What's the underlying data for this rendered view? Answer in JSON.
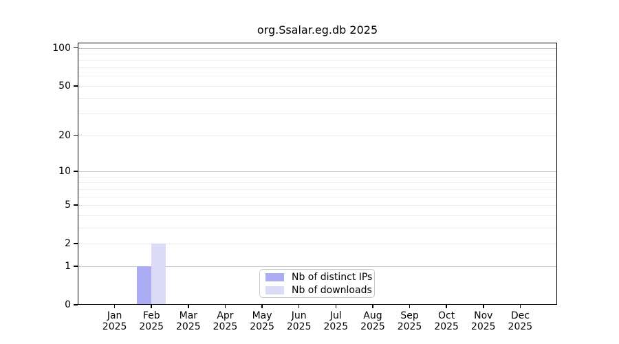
{
  "chart_data": {
    "type": "bar",
    "title": "org.Ssalar.eg.db 2025",
    "categories": [
      "Jan",
      "Feb",
      "Mar",
      "Apr",
      "May",
      "Jun",
      "Jul",
      "Aug",
      "Sep",
      "Oct",
      "Nov",
      "Dec"
    ],
    "x_year": "2025",
    "series": [
      {
        "name": "Nb of distinct IPs",
        "color": "#acacf4",
        "values": [
          0,
          1,
          0,
          0,
          0,
          0,
          0,
          0,
          0,
          0,
          0,
          0
        ]
      },
      {
        "name": "Nb of downloads",
        "color": "#dcdcf8",
        "values": [
          0,
          2,
          0,
          0,
          0,
          0,
          0,
          0,
          0,
          0,
          0,
          0
        ]
      }
    ],
    "y_scale": "log1p",
    "ylim": [
      0,
      110
    ],
    "y_labeled_ticks": [
      0,
      1,
      2,
      5,
      10,
      20,
      50,
      100
    ],
    "y_major_grid": [
      1,
      10,
      100
    ],
    "y_minor_grid": [
      2,
      3,
      4,
      5,
      6,
      7,
      8,
      9,
      20,
      30,
      40,
      50,
      60,
      70,
      80,
      90
    ],
    "grid": "horizontal",
    "legend_position": "lower center",
    "colors": {
      "major_grid": "#c6c6c6",
      "minor_grid": "#ebebeb",
      "spine": "#000000",
      "text": "#000000",
      "background": "#ffffff"
    }
  },
  "legend": {
    "items": [
      {
        "label": "Nb of distinct IPs",
        "color": "#acacf4"
      },
      {
        "label": "Nb of downloads",
        "color": "#dcdcf8"
      }
    ]
  }
}
